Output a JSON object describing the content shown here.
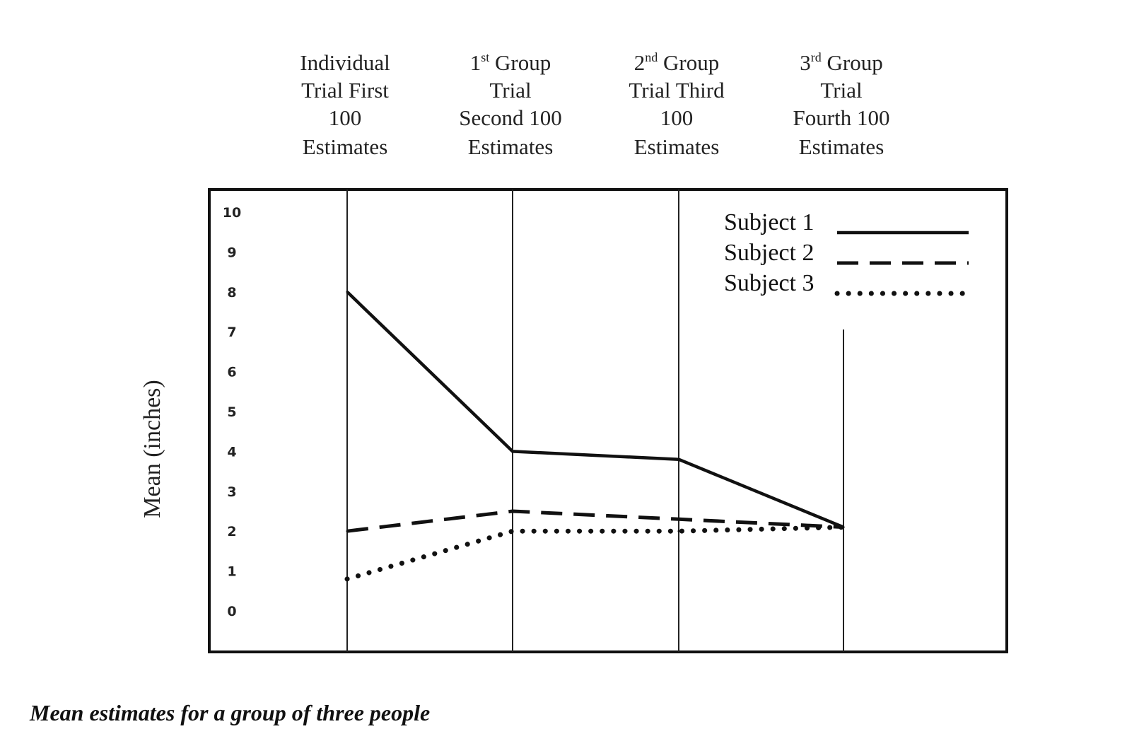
{
  "chart_data": {
    "type": "line",
    "categories": [
      [
        "Individual",
        "Trial First",
        "100",
        "Estimates"
      ],
      [
        "1st Group",
        "Trial",
        "Second 100",
        "Estimates"
      ],
      [
        "2nd Group",
        "Trial Third",
        "100",
        "Estimates"
      ],
      [
        "3rd Group",
        "Trial",
        "Fourth 100",
        "Estimates"
      ]
    ],
    "category_superscripts": [
      "",
      "st",
      "nd",
      "rd"
    ],
    "series": [
      {
        "name": "Subject 1",
        "style": "solid",
        "values": [
          8.0,
          4.0,
          3.8,
          2.1
        ]
      },
      {
        "name": "Subject 2",
        "style": "dashed",
        "values": [
          2.0,
          2.5,
          2.3,
          2.1
        ]
      },
      {
        "name": "Subject 3",
        "style": "dotted",
        "values": [
          0.8,
          2.0,
          2.0,
          2.1
        ]
      }
    ],
    "yticks": [
      "0",
      "1",
      "2",
      "3",
      "4",
      "5",
      "6",
      "7",
      "8",
      "9",
      "10"
    ],
    "ylim": [
      0,
      10
    ],
    "ylabel": "Mean (inches)",
    "xlabel": "",
    "title": "",
    "legend_position": "top-right",
    "grid": "vertical lines at categories",
    "colors": {
      "line": "#111111",
      "frame": "#111111"
    }
  },
  "caption": "Mean estimates for a group of three people"
}
